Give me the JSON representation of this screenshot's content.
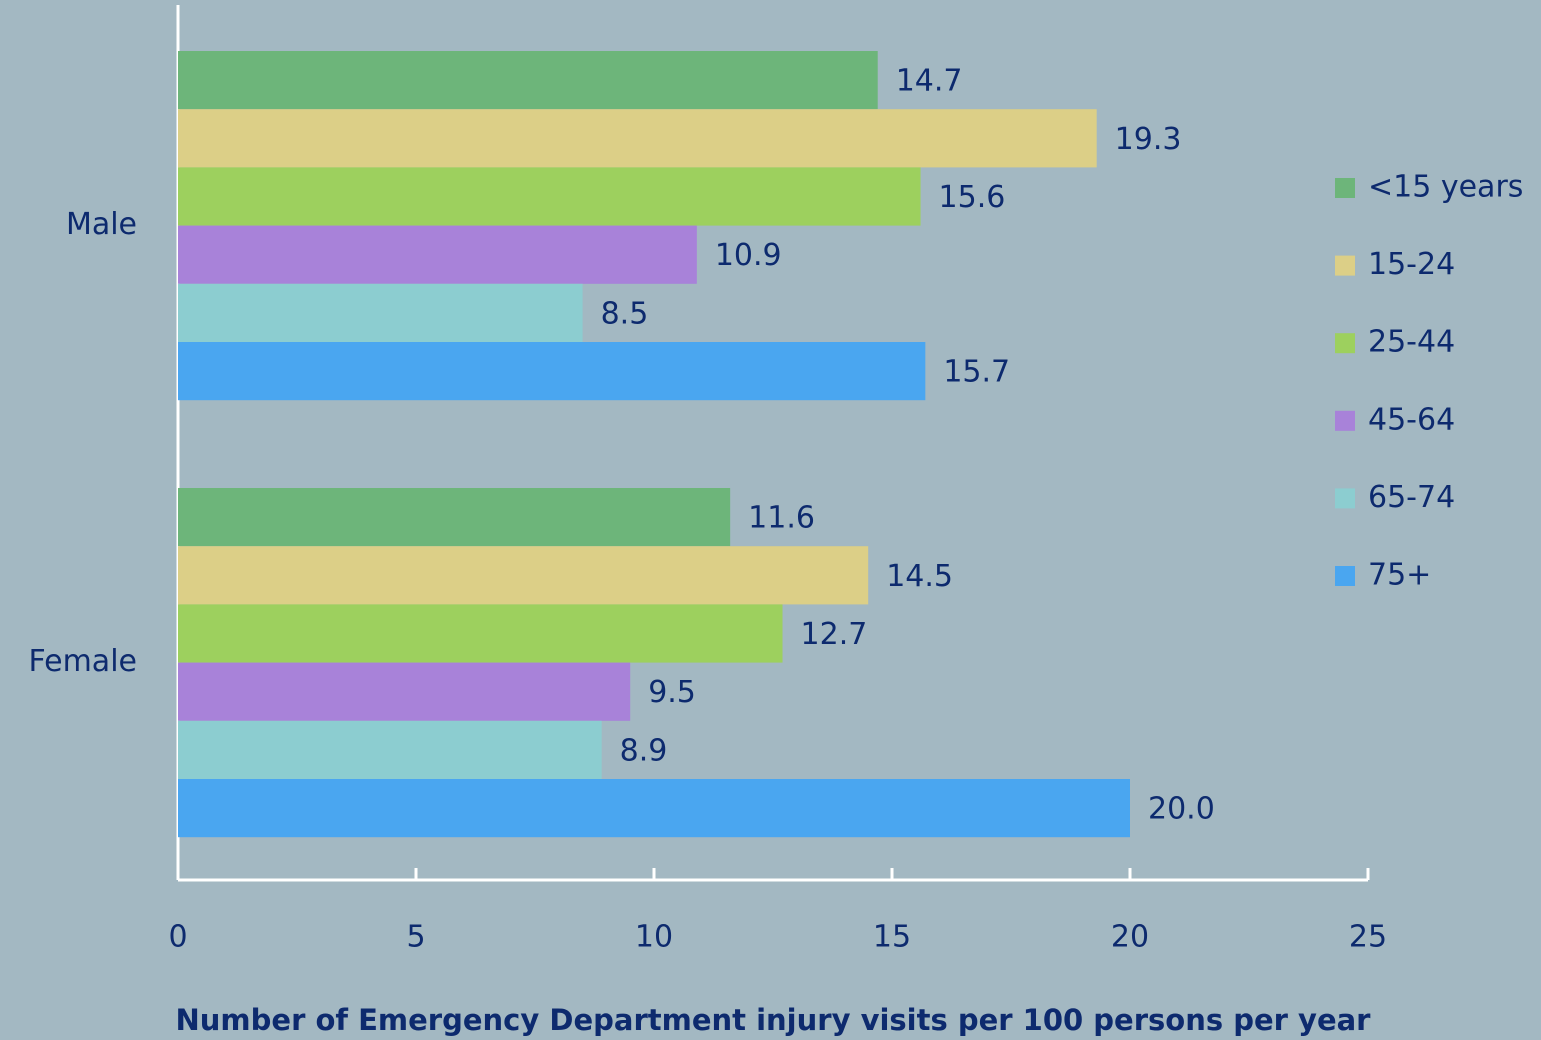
{
  "chart_data": {
    "type": "hbar",
    "categories": [
      "Male",
      "Female"
    ],
    "series": [
      {
        "name": "<15 years",
        "color": "#6db57a",
        "values": [
          14.7,
          11.6
        ]
      },
      {
        "name": "15-24",
        "color": "#dccf87",
        "values": [
          19.3,
          14.5
        ]
      },
      {
        "name": "25-44",
        "color": "#9dd05e",
        "values": [
          15.6,
          12.7
        ]
      },
      {
        "name": "45-64",
        "color": "#a882d9",
        "values": [
          10.9,
          9.5
        ]
      },
      {
        "name": "65-74",
        "color": "#8ccdd0",
        "values": [
          8.5,
          8.9
        ]
      },
      {
        "name": "75+",
        "color": "#4aa6f0",
        "values": [
          15.7,
          20.0
        ],
        "value_labels": [
          "15.7",
          "20.0"
        ]
      }
    ],
    "xlabel": "Number of Emergency Department injury visits per 100 persons per year",
    "xlim": [
      0,
      25
    ],
    "xticks": [
      0,
      5,
      10,
      15,
      20,
      25
    ],
    "grid": false,
    "legend": "right"
  }
}
